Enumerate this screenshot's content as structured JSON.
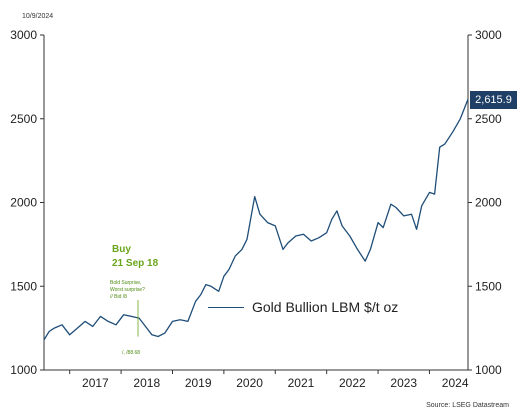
{
  "date_stamp": "10/9/2024",
  "source": "Source: LSEG Datastream",
  "chart_data": {
    "type": "line",
    "ylim": [
      1000,
      3000
    ],
    "yticks_left": [
      "3000",
      "2500",
      "2000",
      "1500",
      "1000"
    ],
    "yticks_right": [
      "3000",
      "2500",
      "2000",
      "1500",
      "1000"
    ],
    "ytick_values": [
      3000,
      2500,
      2000,
      1500,
      1000
    ],
    "xlim": [
      2016.5,
      2024.75
    ],
    "xtick_labels": [
      "2017",
      "2018",
      "2019",
      "2020",
      "2021",
      "2022",
      "2023",
      "2024"
    ],
    "xtick_values": [
      2017,
      2018,
      2019,
      2020,
      2021,
      2022,
      2023,
      2024
    ],
    "series": [
      {
        "name": "Gold Bullion LBM $/t oz",
        "color": "#1f4e79",
        "x": [
          2016.5,
          2016.6,
          2016.7,
          2016.85,
          2017.0,
          2017.15,
          2017.3,
          2017.45,
          2017.6,
          2017.75,
          2017.9,
          2018.05,
          2018.2,
          2018.35,
          2018.5,
          2018.6,
          2018.72,
          2018.85,
          2019.0,
          2019.15,
          2019.3,
          2019.45,
          2019.55,
          2019.65,
          2019.75,
          2019.9,
          2020.0,
          2020.1,
          2020.22,
          2020.35,
          2020.45,
          2020.55,
          2020.6,
          2020.7,
          2020.85,
          2021.0,
          2021.15,
          2021.25,
          2021.4,
          2021.55,
          2021.7,
          2021.85,
          2022.0,
          2022.1,
          2022.2,
          2022.3,
          2022.45,
          2022.6,
          2022.75,
          2022.85,
          2023.0,
          2023.1,
          2023.25,
          2023.35,
          2023.5,
          2023.65,
          2023.75,
          2023.85,
          2024.0,
          2024.1,
          2024.2,
          2024.3,
          2024.45,
          2024.6,
          2024.75
        ],
        "values": [
          1180,
          1230,
          1250,
          1270,
          1210,
          1250,
          1290,
          1260,
          1320,
          1290,
          1270,
          1330,
          1320,
          1310,
          1250,
          1210,
          1200,
          1220,
          1290,
          1300,
          1290,
          1410,
          1450,
          1510,
          1500,
          1470,
          1560,
          1600,
          1680,
          1720,
          1780,
          1950,
          2035,
          1930,
          1880,
          1860,
          1720,
          1760,
          1800,
          1810,
          1770,
          1790,
          1820,
          1900,
          1950,
          1860,
          1800,
          1720,
          1650,
          1720,
          1880,
          1850,
          1990,
          1970,
          1920,
          1930,
          1840,
          1980,
          2060,
          2050,
          2330,
          2350,
          2420,
          2500,
          2615.9
        ]
      }
    ],
    "last_value_label": "2,615.9",
    "legend_label": "Gold Bullion LBM $/t oz",
    "legend_placement": "center-right",
    "grid": false
  },
  "annotations": {
    "buy_line1": "Buy",
    "buy_line2": "21 Sep 18",
    "small_1": "Bold Surprise,",
    "small_2": "Worst surprise?",
    "small_3": "// Bid /8",
    "small_4": "/, /88.68"
  }
}
